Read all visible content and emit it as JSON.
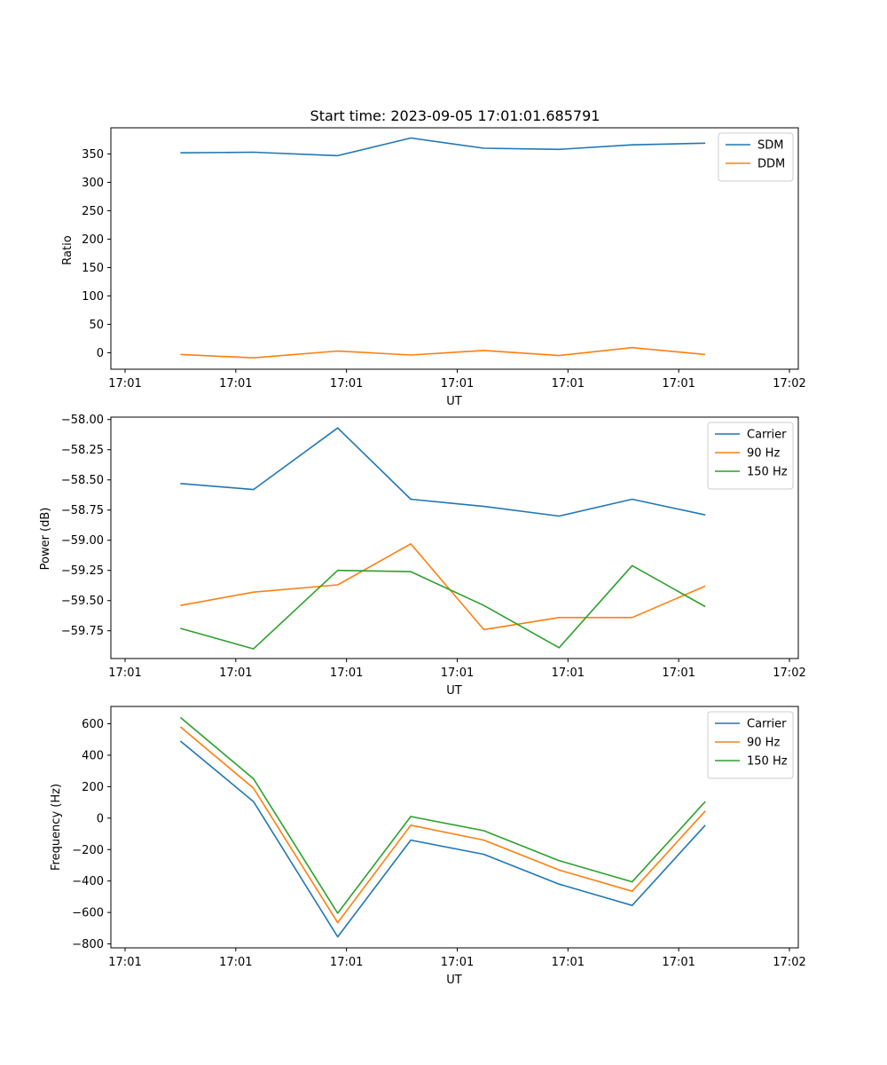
{
  "chart_data": [
    {
      "type": "line",
      "title": "Start time: 2023-09-05 17:01:01.685791",
      "xlabel": "UT",
      "ylabel": "Ratio",
      "x": [
        0.25,
        0.58,
        0.96,
        1.29,
        1.62,
        1.96,
        2.29,
        2.62
      ],
      "xlim": [
        0,
        3.0
      ],
      "xticks": [
        0,
        0.5,
        1.0,
        1.5,
        2.0,
        2.5,
        3.0
      ],
      "xtick_labels": [
        "17:01",
        "17:01",
        "17:01",
        "17:01",
        "17:01",
        "17:01",
        "17:02"
      ],
      "ylim": [
        -29,
        396
      ],
      "yticks": [
        0,
        50,
        100,
        150,
        200,
        250,
        300,
        350
      ],
      "ytick_labels": [
        "0",
        "50",
        "100",
        "150",
        "200",
        "250",
        "300",
        "350"
      ],
      "series": [
        {
          "name": "SDM",
          "color": "#1f77b4",
          "values": [
            352,
            353,
            347,
            378,
            360,
            358,
            366,
            369
          ]
        },
        {
          "name": "DDM",
          "color": "#ff7f0e",
          "values": [
            -3,
            -9,
            3,
            -4,
            4,
            -5,
            9,
            -3
          ]
        }
      ],
      "legend": "top-right"
    },
    {
      "type": "line",
      "title": "",
      "xlabel": "UT",
      "ylabel": "Power (dB)",
      "x": [
        0.25,
        0.58,
        0.96,
        1.29,
        1.62,
        1.96,
        2.29,
        2.62
      ],
      "xlim": [
        0,
        3.0
      ],
      "xticks": [
        0,
        0.5,
        1.0,
        1.5,
        2.0,
        2.5,
        3.0
      ],
      "xtick_labels": [
        "17:01",
        "17:01",
        "17:01",
        "17:01",
        "17:01",
        "17:01",
        "17:02"
      ],
      "ylim": [
        -59.98,
        -57.98
      ],
      "yticks": [
        -59.75,
        -59.5,
        -59.25,
        -59.0,
        -58.75,
        -58.5,
        -58.25,
        -58.0
      ],
      "ytick_labels": [
        "−59.75",
        "−59.50",
        "−59.25",
        "−59.00",
        "−58.75",
        "−58.50",
        "−58.25",
        "−58.00"
      ],
      "series": [
        {
          "name": "Carrier",
          "color": "#1f77b4",
          "values": [
            -58.53,
            -58.58,
            -58.07,
            -58.66,
            -58.72,
            -58.8,
            -58.66,
            -58.79
          ]
        },
        {
          "name": "90 Hz",
          "color": "#ff7f0e",
          "values": [
            -59.54,
            -59.43,
            -59.37,
            -59.03,
            -59.74,
            -59.64,
            -59.64,
            -59.38
          ]
        },
        {
          "name": "150 Hz",
          "color": "#2ca02c",
          "values": [
            -59.73,
            -59.9,
            -59.25,
            -59.26,
            -59.54,
            -59.89,
            -59.21,
            -59.55
          ]
        }
      ],
      "legend": "top-right"
    },
    {
      "type": "line",
      "title": "",
      "xlabel": "UT",
      "ylabel": "Frequency (Hz)",
      "x": [
        0.25,
        0.58,
        0.96,
        1.29,
        1.62,
        1.96,
        2.29,
        2.62
      ],
      "xlim": [
        0,
        3.0
      ],
      "xticks": [
        0,
        0.5,
        1.0,
        1.5,
        2.0,
        2.5,
        3.0
      ],
      "xtick_labels": [
        "17:01",
        "17:01",
        "17:01",
        "17:01",
        "17:01",
        "17:01",
        "17:02"
      ],
      "ylim": [
        -825,
        710
      ],
      "yticks": [
        -800,
        -600,
        -400,
        -200,
        0,
        200,
        400,
        600
      ],
      "ytick_labels": [
        "−800",
        "−600",
        "−400",
        "−200",
        "0",
        "200",
        "400",
        "600"
      ],
      "series": [
        {
          "name": "Carrier",
          "color": "#1f77b4",
          "values": [
            490,
            105,
            -755,
            -140,
            -230,
            -420,
            -555,
            -45
          ]
        },
        {
          "name": "90 Hz",
          "color": "#ff7f0e",
          "values": [
            580,
            190,
            -665,
            -45,
            -140,
            -330,
            -465,
            45
          ]
        },
        {
          "name": "150 Hz",
          "color": "#2ca02c",
          "values": [
            640,
            250,
            -605,
            10,
            -80,
            -270,
            -405,
            105
          ]
        }
      ],
      "legend": "top-right"
    }
  ]
}
